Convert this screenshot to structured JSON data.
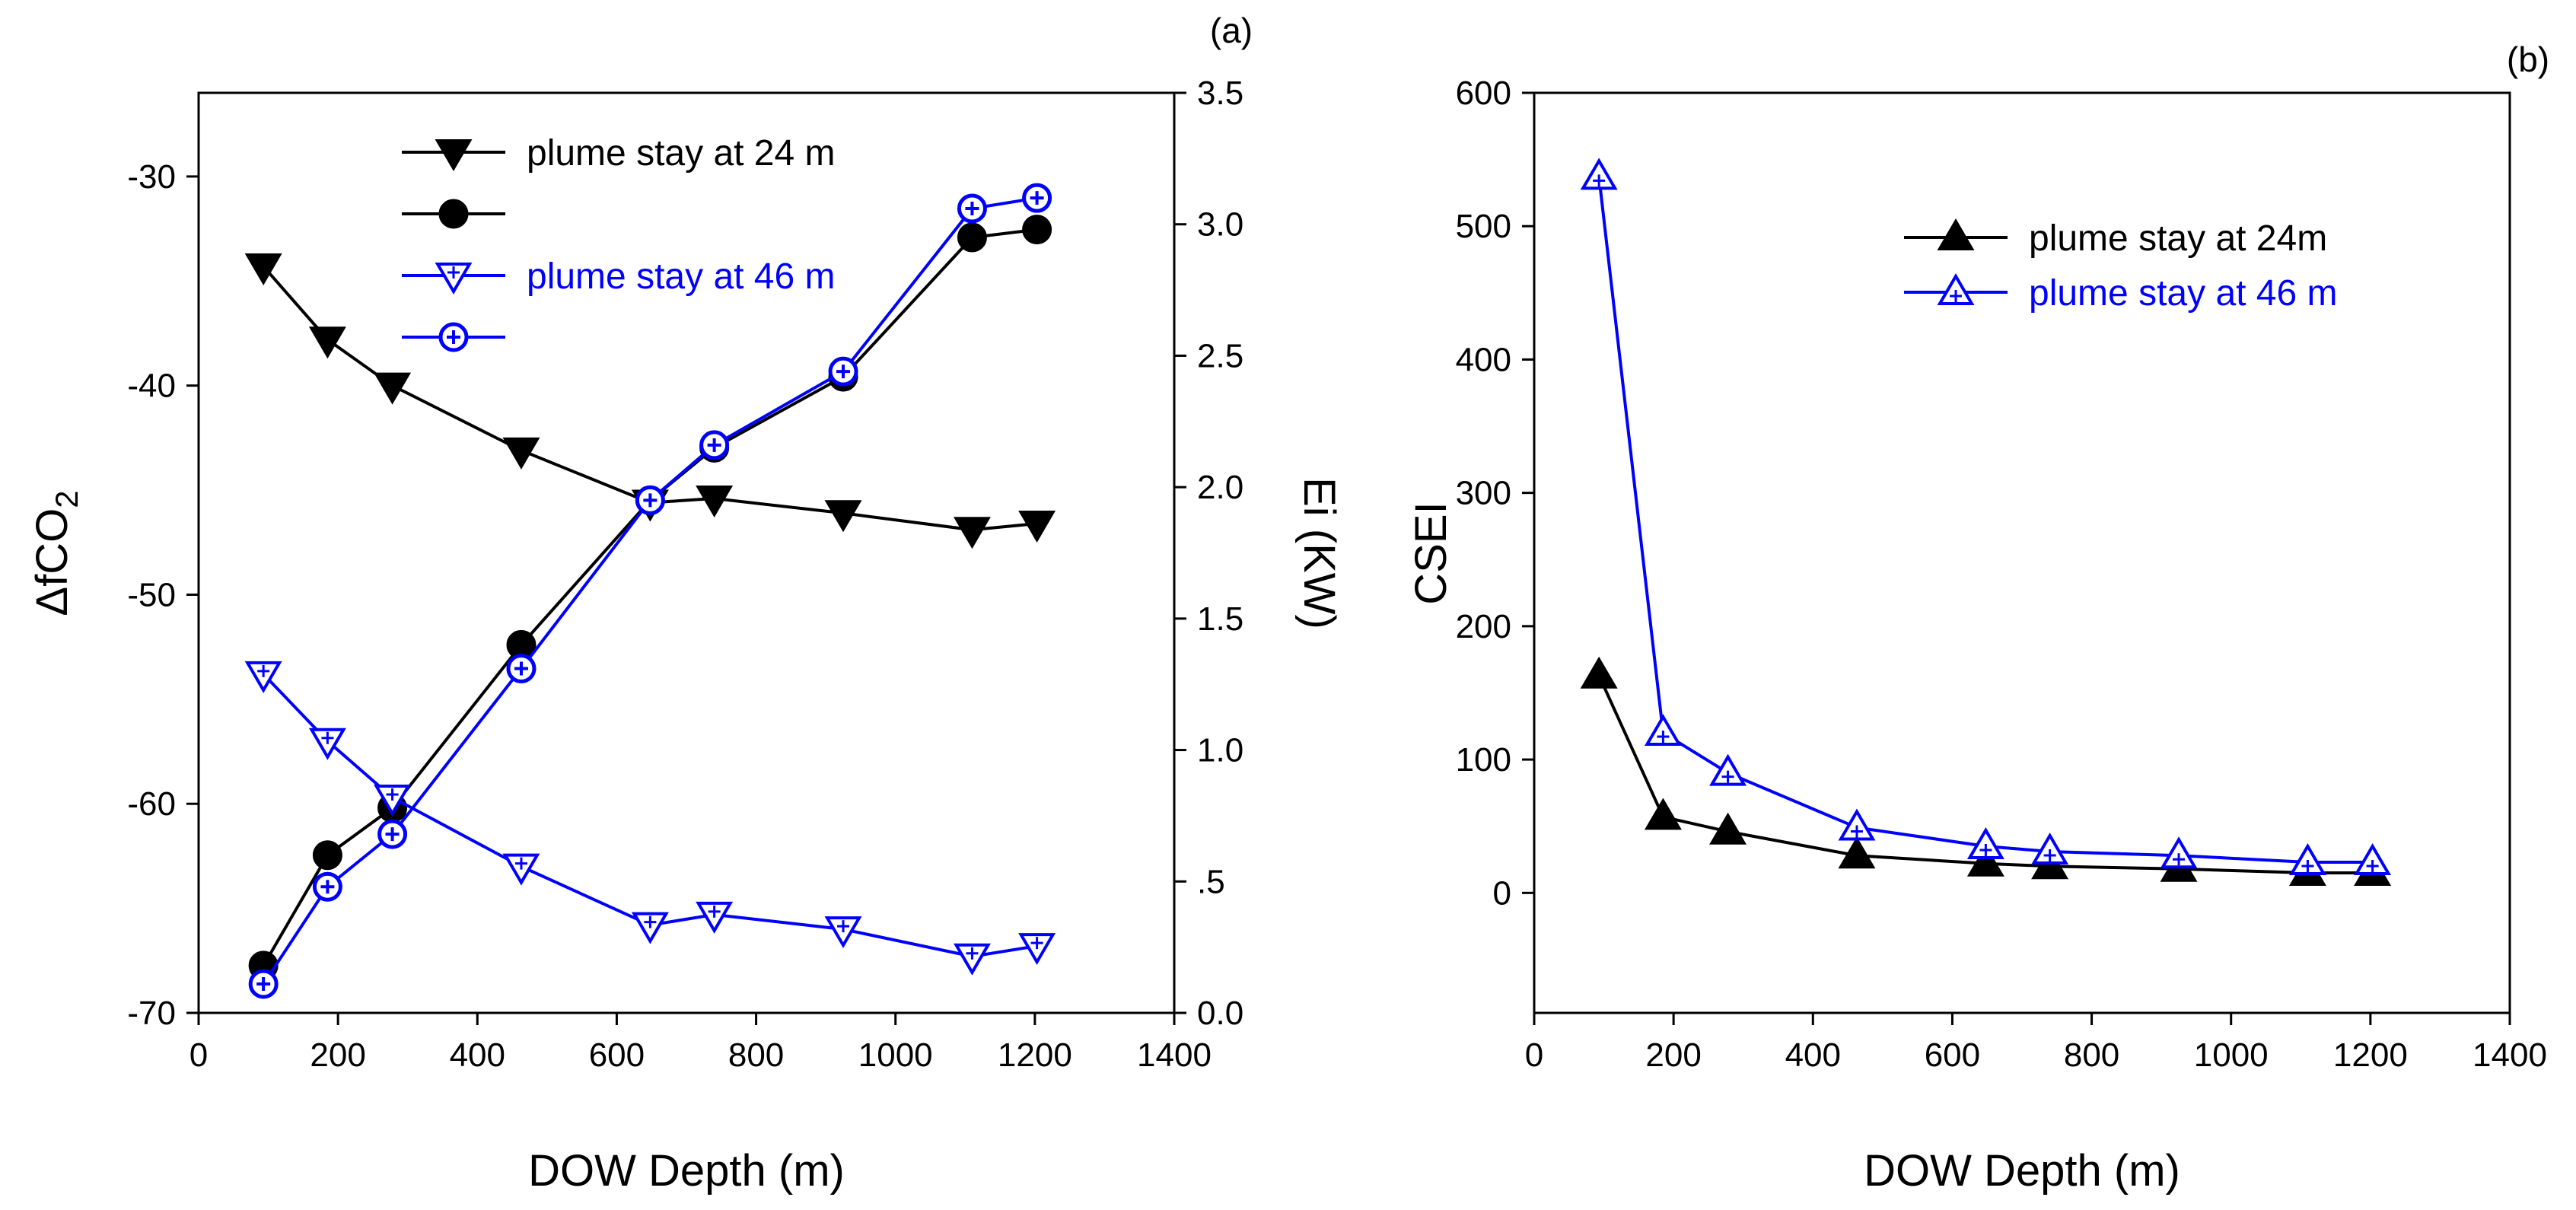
{
  "chart_data": [
    {
      "id": "a",
      "type": "line",
      "panel_label": "(a)",
      "xlabel": "DOW Depth (m)",
      "ylabel_main": "ΔfCO",
      "ylabel_sub": "2",
      "y2label": "Ei (KW)",
      "xlim": [
        0,
        1400
      ],
      "ylim": [
        -70,
        -26
      ],
      "y2lim": [
        0.0,
        3.5
      ],
      "xticks": [
        0,
        200,
        400,
        600,
        800,
        1000,
        1200,
        1400
      ],
      "xtick_labels": [
        "0",
        "200",
        "400",
        "600",
        "800",
        "1000",
        "1200",
        "1400"
      ],
      "yticks": [
        -70,
        -60,
        -50,
        -40,
        -30
      ],
      "ytick_labels": [
        "-70",
        "-60",
        "-50",
        "-40",
        "-30"
      ],
      "y2ticks": [
        0.0,
        0.5,
        1.0,
        1.5,
        2.0,
        2.5,
        3.0,
        3.5
      ],
      "y2tick_labels": [
        "0.0",
        ".5",
        "1.0",
        "1.5",
        "2.0",
        "2.5",
        "3.0",
        "3.5"
      ],
      "x": [
        93,
        185,
        278,
        463,
        648,
        740,
        925,
        1110,
        1203
      ],
      "series": [
        {
          "name": "plume stay at 24 m",
          "axis": "left",
          "marker": "triangle-down-filled",
          "color": "#000000",
          "values": [
            -34.3,
            -37.8,
            -40.0,
            -43.1,
            -45.6,
            -45.4,
            -46.1,
            -46.9,
            -46.6
          ]
        },
        {
          "name": "",
          "axis": "right",
          "marker": "circle-filled",
          "color": "#000000",
          "values": [
            0.18,
            0.6,
            0.78,
            1.4,
            1.95,
            2.15,
            2.42,
            2.95,
            2.98
          ]
        },
        {
          "name": "plume stay at 46 m",
          "axis": "left",
          "marker": "triangle-down-open",
          "color": "#0000ff",
          "values": [
            -53.8,
            -57.0,
            -59.7,
            -63.0,
            -65.8,
            -65.3,
            -66.0,
            -67.3,
            -66.8
          ]
        },
        {
          "name": "",
          "axis": "right",
          "marker": "circle-open",
          "color": "#0000ff",
          "values": [
            0.11,
            0.48,
            0.68,
            1.31,
            1.95,
            2.16,
            2.44,
            3.06,
            3.1
          ]
        }
      ]
    },
    {
      "id": "b",
      "type": "line",
      "panel_label": "(b)",
      "xlabel": "DOW Depth (m)",
      "ylabel": "CSEI",
      "xlim": [
        0,
        1400
      ],
      "ylim": [
        -90,
        600
      ],
      "xticks": [
        0,
        200,
        400,
        600,
        800,
        1000,
        1200,
        1400
      ],
      "xtick_labels": [
        "0",
        "200",
        "400",
        "600",
        "800",
        "1000",
        "1200",
        "1400"
      ],
      "yticks": [
        0,
        100,
        200,
        300,
        400,
        500,
        600
      ],
      "ytick_labels": [
        "0",
        "100",
        "200",
        "300",
        "400",
        "500",
        "600"
      ],
      "x": [
        93,
        185,
        278,
        463,
        648,
        740,
        925,
        1110,
        1203
      ],
      "series": [
        {
          "name": "plume stay at 24m",
          "marker": "triangle-up-filled",
          "color": "#000000",
          "values": [
            163,
            57,
            46,
            28,
            22,
            20,
            18,
            15,
            15
          ]
        },
        {
          "name": "plume stay at 46 m",
          "marker": "triangle-up-open",
          "color": "#0000ff",
          "values": [
            537,
            120,
            90,
            49,
            35,
            31,
            28,
            23,
            23
          ]
        }
      ]
    }
  ]
}
